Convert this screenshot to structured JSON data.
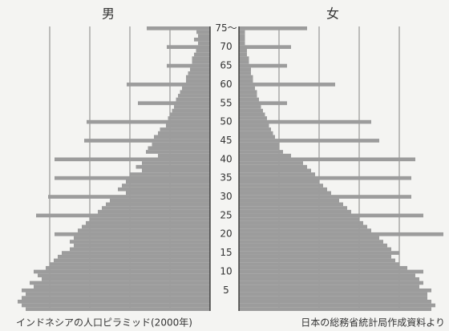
{
  "chart_data": {
    "type": "pyramid",
    "categories": [
      null,
      null,
      null,
      null,
      null,
      "5",
      null,
      null,
      null,
      null,
      "10",
      null,
      null,
      null,
      null,
      "15",
      null,
      null,
      null,
      null,
      "20",
      null,
      null,
      null,
      null,
      "25",
      null,
      null,
      null,
      null,
      "30",
      null,
      null,
      null,
      null,
      "35",
      null,
      null,
      null,
      null,
      "40",
      null,
      null,
      null,
      null,
      "45",
      null,
      null,
      null,
      null,
      "50",
      null,
      null,
      null,
      null,
      "55",
      null,
      null,
      null,
      null,
      "60",
      null,
      null,
      null,
      null,
      "65",
      null,
      null,
      null,
      null,
      "70",
      null,
      null,
      null,
      null,
      "75〜"
    ],
    "series": [
      {
        "name": "男",
        "color": "#9c9c9c",
        "values": [
          4.6,
          4.7,
          4.8,
          4.7,
          4.6,
          4.7,
          4.4,
          4.5,
          4.2,
          4.3,
          4.4,
          4.1,
          4.0,
          3.9,
          3.8,
          3.7,
          3.5,
          3.4,
          3.5,
          3.4,
          3.88,
          3.3,
          3.2,
          3.1,
          3.0,
          4.34,
          2.8,
          2.7,
          2.6,
          2.5,
          4.04,
          2.1,
          2.3,
          2.2,
          2.1,
          3.88,
          2.0,
          1.7,
          1.85,
          1.7,
          3.88,
          1.3,
          1.6,
          1.55,
          1.45,
          3.14,
          1.4,
          1.3,
          1.25,
          1.1,
          3.08,
          1.05,
          1.0,
          0.95,
          0.9,
          1.8,
          0.85,
          0.8,
          0.75,
          0.7,
          2.08,
          0.6,
          0.6,
          0.55,
          0.5,
          1.08,
          0.45,
          0.45,
          0.4,
          0.35,
          1.08,
          0.3,
          0.4,
          0.3,
          0.34,
          1.58
        ]
      },
      {
        "name": "女",
        "color": "#9c9c9c",
        "values": [
          4.8,
          4.9,
          4.8,
          4.7,
          4.7,
          4.8,
          4.5,
          4.6,
          4.5,
          4.4,
          4.6,
          4.2,
          4.0,
          3.9,
          3.8,
          4.0,
          3.8,
          3.7,
          3.6,
          3.5,
          5.1,
          3.3,
          3.2,
          3.1,
          3.0,
          4.6,
          2.8,
          2.7,
          2.6,
          2.5,
          4.3,
          2.3,
          2.2,
          2.1,
          2.0,
          4.3,
          1.9,
          1.8,
          1.7,
          1.6,
          4.4,
          1.3,
          1.1,
          1.0,
          1.0,
          3.5,
          0.9,
          0.85,
          0.8,
          0.75,
          3.3,
          0.7,
          0.65,
          0.6,
          0.55,
          1.2,
          0.5,
          0.45,
          0.45,
          0.4,
          2.4,
          0.35,
          0.35,
          0.3,
          0.3,
          1.2,
          0.25,
          0.25,
          0.2,
          0.2,
          1.3,
          0.15,
          0.15,
          0.15,
          0.15,
          1.7
        ]
      }
    ],
    "xlim": [
      0,
      5.2
    ],
    "xticks": [
      1,
      2,
      3,
      4
    ],
    "grid": true,
    "caption_left": "インドネシアの人口ピラミッド(2000年)",
    "caption_right": "日本の総務省統計局作成資料より"
  }
}
